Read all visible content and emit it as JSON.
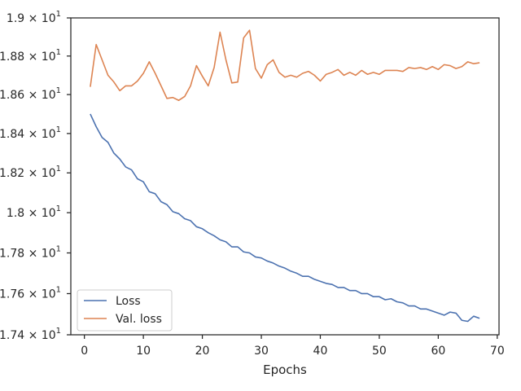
{
  "chart_data": {
    "type": "line",
    "xlabel": "Epochs",
    "ylabel": "",
    "xlim": [
      -2.3,
      70.3
    ],
    "ylim": [
      17.4,
      19.0
    ],
    "yscale": "log",
    "grid": false,
    "legend_position": "lower-left",
    "x_ticks": [
      0,
      10,
      20,
      30,
      40,
      50,
      60,
      70
    ],
    "x_tick_labels": [
      "0",
      "10",
      "20",
      "30",
      "40",
      "50",
      "60",
      "70"
    ],
    "y_ticks": [
      17.4,
      17.6,
      17.8,
      18.0,
      18.2,
      18.4,
      18.6,
      18.8,
      19.0
    ],
    "y_tick_labels": [
      {
        "mant": "1.74",
        "exp": "1"
      },
      {
        "mant": "1.76",
        "exp": "1"
      },
      {
        "mant": "1.78",
        "exp": "1"
      },
      {
        "mant": "1.8",
        "exp": "1"
      },
      {
        "mant": "1.82",
        "exp": "1"
      },
      {
        "mant": "1.84",
        "exp": "1"
      },
      {
        "mant": "1.86",
        "exp": "1"
      },
      {
        "mant": "1.88",
        "exp": "1"
      },
      {
        "mant": "1.9",
        "exp": "1"
      }
    ],
    "x": [
      1,
      2,
      3,
      4,
      5,
      6,
      7,
      8,
      9,
      10,
      11,
      12,
      13,
      14,
      15,
      16,
      17,
      18,
      19,
      20,
      21,
      22,
      23,
      24,
      25,
      26,
      27,
      28,
      29,
      30,
      31,
      32,
      33,
      34,
      35,
      36,
      37,
      38,
      39,
      40,
      41,
      42,
      43,
      44,
      45,
      46,
      47,
      48,
      49,
      50,
      51,
      52,
      53,
      54,
      55,
      56,
      57,
      58,
      59,
      60,
      61,
      62,
      63,
      64,
      65,
      66,
      67
    ],
    "series": [
      {
        "name": "Loss",
        "color": "#4c72b0",
        "values": [
          18.5,
          18.435,
          18.38,
          18.355,
          18.3,
          18.27,
          18.23,
          18.215,
          18.17,
          18.155,
          18.105,
          18.095,
          18.055,
          18.04,
          18.005,
          17.995,
          17.97,
          17.96,
          17.93,
          17.92,
          17.9,
          17.885,
          17.865,
          17.855,
          17.83,
          17.83,
          17.805,
          17.8,
          17.78,
          17.775,
          17.76,
          17.75,
          17.735,
          17.725,
          17.71,
          17.7,
          17.685,
          17.685,
          17.67,
          17.66,
          17.65,
          17.645,
          17.63,
          17.63,
          17.615,
          17.615,
          17.6,
          17.6,
          17.585,
          17.585,
          17.57,
          17.575,
          17.56,
          17.555,
          17.54,
          17.54,
          17.525,
          17.525,
          17.515,
          17.505,
          17.495,
          17.51,
          17.505,
          17.47,
          17.465,
          17.49,
          17.48
        ]
      },
      {
        "name": "Val. loss",
        "color": "#dd8452",
        "values": [
          18.64,
          18.86,
          18.78,
          18.7,
          18.665,
          18.62,
          18.645,
          18.645,
          18.67,
          18.71,
          18.77,
          18.71,
          18.645,
          18.58,
          18.585,
          18.57,
          18.59,
          18.645,
          18.75,
          18.695,
          18.645,
          18.74,
          18.925,
          18.78,
          18.66,
          18.665,
          18.895,
          18.935,
          18.735,
          18.685,
          18.755,
          18.78,
          18.715,
          18.69,
          18.7,
          18.69,
          18.71,
          18.72,
          18.7,
          18.67,
          18.705,
          18.715,
          18.73,
          18.7,
          18.715,
          18.7,
          18.725,
          18.705,
          18.715,
          18.705,
          18.725,
          18.725,
          18.725,
          18.72,
          18.74,
          18.735,
          18.74,
          18.73,
          18.745,
          18.73,
          18.755,
          18.75,
          18.735,
          18.745,
          18.77,
          18.76,
          18.765
        ]
      }
    ]
  }
}
